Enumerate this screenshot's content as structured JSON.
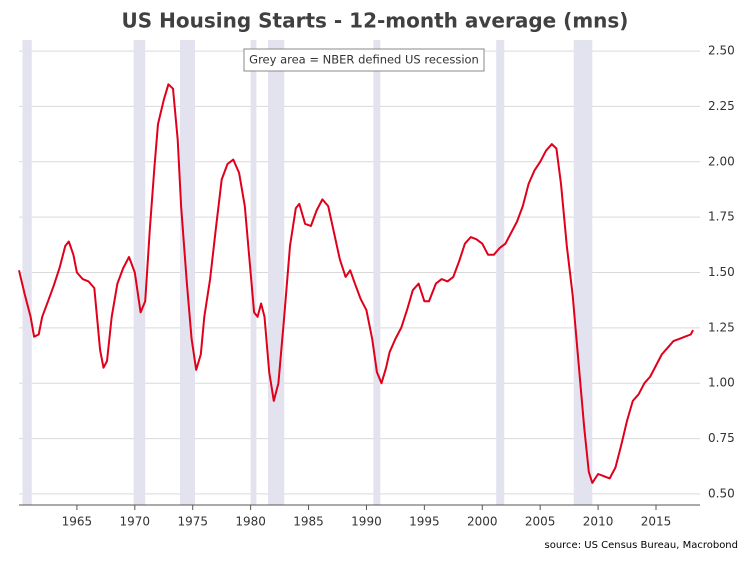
{
  "chart_data": {
    "type": "line",
    "title": "US Housing Starts - 12-month average (mns)",
    "annotation": "Grey area = NBER defined US recession",
    "source": "source: US Census Bureau, Macrobond",
    "xlim": [
      1960,
      2018.8
    ],
    "ylim": [
      0.45,
      2.55
    ],
    "xticks": [
      1965,
      1970,
      1975,
      1980,
      1985,
      1990,
      1995,
      2000,
      2005,
      2010,
      2015
    ],
    "yticks": [
      {
        "value": 0.5,
        "label": "0.50"
      },
      {
        "value": 0.75,
        "label": "0.75"
      },
      {
        "value": 1.0,
        "label": "1.00"
      },
      {
        "value": 1.25,
        "label": "1.25"
      },
      {
        "value": 1.5,
        "label": "1.50"
      },
      {
        "value": 1.75,
        "label": "1.75"
      },
      {
        "value": 2.0,
        "label": "2.00"
      },
      {
        "value": 2.25,
        "label": "2.25"
      },
      {
        "value": 2.5,
        "label": "2.50"
      }
    ],
    "grid": true,
    "recession_color": "#e3e3ef",
    "recessions": [
      [
        1960.3,
        1961.1
      ],
      [
        1969.9,
        1970.9
      ],
      [
        1973.9,
        1975.2
      ],
      [
        1980.0,
        1980.5
      ],
      [
        1981.5,
        1982.9
      ],
      [
        1990.6,
        1991.2
      ],
      [
        2001.2,
        2001.9
      ],
      [
        2007.9,
        2009.5
      ]
    ],
    "series": [
      {
        "color": "#e0001b",
        "x": [
          1960,
          1960.5,
          1961,
          1961.3,
          1961.7,
          1962,
          1962.5,
          1963,
          1963.5,
          1964,
          1964.3,
          1964.7,
          1965,
          1965.5,
          1966,
          1966.5,
          1967,
          1967.3,
          1967.6,
          1968,
          1968.5,
          1969,
          1969.5,
          1970,
          1970.5,
          1970.9,
          1971.3,
          1971.7,
          1972,
          1972.5,
          1972.9,
          1973.3,
          1973.7,
          1974,
          1974.5,
          1974.9,
          1975.3,
          1975.7,
          1976,
          1976.5,
          1977,
          1977.5,
          1978,
          1978.5,
          1979,
          1979.5,
          1980,
          1980.3,
          1980.6,
          1980.9,
          1981.2,
          1981.6,
          1982,
          1982.4,
          1982.9,
          1983.4,
          1983.9,
          1984.2,
          1984.7,
          1985.2,
          1985.7,
          1986.2,
          1986.7,
          1987.2,
          1987.7,
          1988.2,
          1988.6,
          1989,
          1989.5,
          1990,
          1990.5,
          1990.9,
          1991.3,
          1991.7,
          1992,
          1992.5,
          1993,
          1993.5,
          1994,
          1994.5,
          1995,
          1995.4,
          1996,
          1996.5,
          1997,
          1997.5,
          1998,
          1998.5,
          1999,
          1999.5,
          2000,
          2000.5,
          2001,
          2001.5,
          2002,
          2002.5,
          2003,
          2003.5,
          2004,
          2004.5,
          2005,
          2005.5,
          2006,
          2006.4,
          2006.8,
          2007.3,
          2007.8,
          2008.3,
          2008.8,
          2009.2,
          2009.5,
          2010,
          2010.5,
          2011,
          2011.5,
          2012,
          2012.5,
          2013,
          2013.5,
          2014,
          2014.5,
          2015,
          2015.5,
          2016,
          2016.5,
          2017,
          2017.5,
          2018,
          2018.2
        ],
        "values": [
          1.51,
          1.4,
          1.3,
          1.21,
          1.22,
          1.3,
          1.37,
          1.44,
          1.52,
          1.62,
          1.64,
          1.58,
          1.5,
          1.47,
          1.46,
          1.43,
          1.15,
          1.07,
          1.1,
          1.3,
          1.45,
          1.52,
          1.57,
          1.5,
          1.32,
          1.37,
          1.7,
          1.98,
          2.17,
          2.28,
          2.35,
          2.33,
          2.1,
          1.8,
          1.45,
          1.2,
          1.06,
          1.13,
          1.3,
          1.47,
          1.7,
          1.92,
          1.99,
          2.01,
          1.95,
          1.8,
          1.5,
          1.32,
          1.3,
          1.36,
          1.3,
          1.05,
          0.92,
          1.0,
          1.3,
          1.62,
          1.79,
          1.81,
          1.72,
          1.71,
          1.78,
          1.83,
          1.8,
          1.68,
          1.56,
          1.48,
          1.51,
          1.45,
          1.38,
          1.33,
          1.2,
          1.05,
          1.0,
          1.07,
          1.14,
          1.2,
          1.25,
          1.33,
          1.42,
          1.45,
          1.37,
          1.37,
          1.45,
          1.47,
          1.46,
          1.48,
          1.55,
          1.63,
          1.66,
          1.65,
          1.63,
          1.58,
          1.58,
          1.61,
          1.63,
          1.68,
          1.73,
          1.8,
          1.9,
          1.96,
          2.0,
          2.05,
          2.08,
          2.06,
          1.9,
          1.62,
          1.4,
          1.1,
          0.8,
          0.6,
          0.55,
          0.59,
          0.58,
          0.57,
          0.62,
          0.72,
          0.83,
          0.92,
          0.95,
          1.0,
          1.03,
          1.08,
          1.13,
          1.16,
          1.19,
          1.2,
          1.21,
          1.22,
          1.24
        ]
      }
    ]
  }
}
